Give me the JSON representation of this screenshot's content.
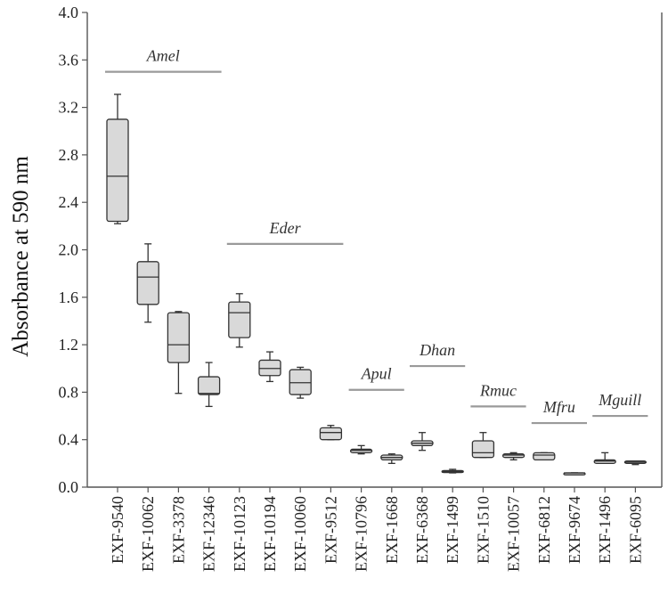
{
  "chart_data": {
    "type": "boxplot",
    "ylabel": "Absorbance at 590 nm",
    "xlabel": "",
    "ylim": [
      0,
      4.0
    ],
    "yticks": [
      "0.0",
      "0.4",
      "0.8",
      "1.2",
      "1.6",
      "2.0",
      "2.4",
      "2.8",
      "3.2",
      "3.6",
      "4.0"
    ],
    "grid": false,
    "box_color": "#d9d9d9",
    "group_line_color": "#9a9a9a",
    "categories": [
      "EXF-9540",
      "EXF-10062",
      "EXF-3378",
      "EXF-12346",
      "EXF-10123",
      "EXF-10194",
      "EXF-10060",
      "EXF-9512",
      "EXF-10796",
      "EXF-1668",
      "EXF-6368",
      "EXF-1499",
      "EXF-1510",
      "EXF-10057",
      "EXF-6812",
      "EXF-9674",
      "EXF-1496",
      "EXF-6095"
    ],
    "boxes": [
      {
        "min": 2.22,
        "q1": 2.24,
        "median": 2.62,
        "q3": 3.1,
        "max": 3.31
      },
      {
        "min": 1.39,
        "q1": 1.54,
        "median": 1.77,
        "q3": 1.9,
        "max": 2.05
      },
      {
        "min": 0.79,
        "q1": 1.05,
        "median": 1.2,
        "q3": 1.47,
        "max": 1.48
      },
      {
        "min": 0.68,
        "q1": 0.78,
        "median": 0.79,
        "q3": 0.93,
        "max": 1.05
      },
      {
        "min": 1.18,
        "q1": 1.26,
        "median": 1.47,
        "q3": 1.56,
        "max": 1.63
      },
      {
        "min": 0.89,
        "q1": 0.94,
        "median": 1.0,
        "q3": 1.07,
        "max": 1.14
      },
      {
        "min": 0.75,
        "q1": 0.78,
        "median": 0.88,
        "q3": 0.99,
        "max": 1.01
      },
      {
        "min": 0.4,
        "q1": 0.4,
        "median": 0.46,
        "q3": 0.5,
        "max": 0.52
      },
      {
        "min": 0.28,
        "q1": 0.29,
        "median": 0.31,
        "q3": 0.32,
        "max": 0.35
      },
      {
        "min": 0.2,
        "q1": 0.23,
        "median": 0.25,
        "q3": 0.27,
        "max": 0.28
      },
      {
        "min": 0.31,
        "q1": 0.35,
        "median": 0.37,
        "q3": 0.39,
        "max": 0.46
      },
      {
        "min": 0.12,
        "q1": 0.13,
        "median": 0.13,
        "q3": 0.14,
        "max": 0.15
      },
      {
        "min": 0.25,
        "q1": 0.25,
        "median": 0.29,
        "q3": 0.39,
        "max": 0.46
      },
      {
        "min": 0.23,
        "q1": 0.25,
        "median": 0.27,
        "q3": 0.28,
        "max": 0.29
      },
      {
        "min": 0.23,
        "q1": 0.23,
        "median": 0.27,
        "q3": 0.29,
        "max": 0.29
      },
      {
        "min": 0.12,
        "q1": 0.12,
        "median": 0.12,
        "q3": 0.12,
        "max": 0.12
      },
      {
        "min": 0.2,
        "q1": 0.2,
        "median": 0.22,
        "q3": 0.23,
        "max": 0.29
      },
      {
        "min": 0.19,
        "q1": 0.2,
        "median": 0.21,
        "q3": 0.22,
        "max": 0.22
      }
    ],
    "groups": [
      {
        "label": "Amel",
        "start": 0,
        "end": 3,
        "y": 3.5
      },
      {
        "label": "Eder",
        "start": 4,
        "end": 7,
        "y": 2.05
      },
      {
        "label": "Apul",
        "start": 8,
        "end": 9,
        "y": 0.82
      },
      {
        "label": "Dhan",
        "start": 10,
        "end": 11,
        "y": 1.02
      },
      {
        "label": "Rmuc",
        "start": 12,
        "end": 13,
        "y": 0.68
      },
      {
        "label": "Mfru",
        "start": 14,
        "end": 15,
        "y": 0.54
      },
      {
        "label": "Mguill",
        "start": 16,
        "end": 17,
        "y": 0.6
      }
    ]
  }
}
